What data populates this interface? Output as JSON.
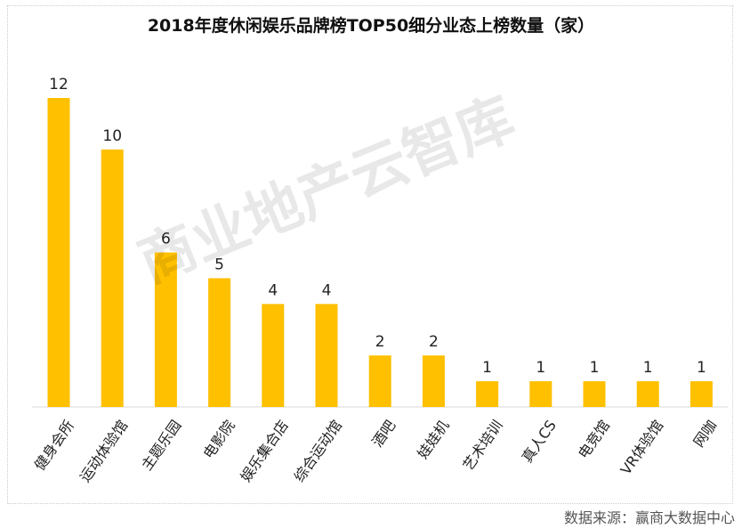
{
  "chart_data": {
    "type": "bar",
    "title": "2018年度休闲娱乐品牌榜TOP50细分业态上榜数量（家）",
    "categories": [
      "健身会所",
      "运动体验馆",
      "主题乐园",
      "电影院",
      "娱乐集合店",
      "综合运动馆",
      "酒吧",
      "娃娃机",
      "艺术培训",
      "真人CS",
      "电竞馆",
      "VR体验馆",
      "网咖"
    ],
    "values": [
      12,
      10,
      6,
      5,
      4,
      4,
      2,
      2,
      1,
      1,
      1,
      1,
      1
    ],
    "ylim": [
      0,
      12
    ],
    "grid": false,
    "bar_color": "#FFC000"
  },
  "watermark": "商业地产云智库",
  "source": "数据来源：赢商大数据中心"
}
